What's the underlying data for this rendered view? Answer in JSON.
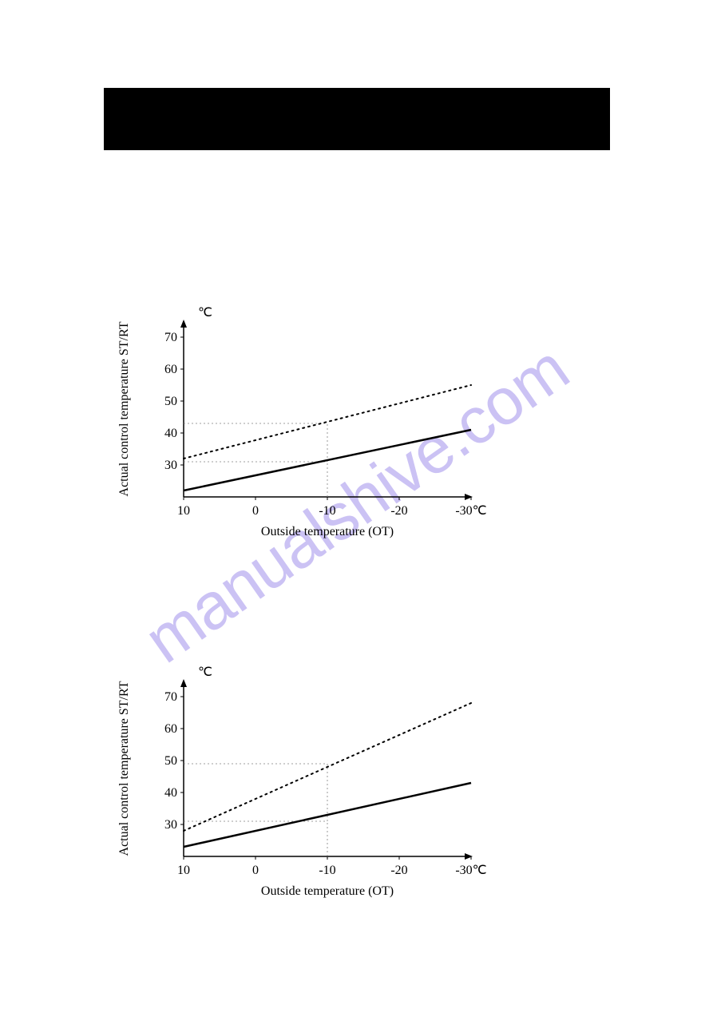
{
  "watermark": {
    "text": "manualshive.com"
  },
  "chart1": {
    "type": "line",
    "y_axis_label": "Actual control temperature ST/RT",
    "y_unit": "℃",
    "x_axis_label": "Outside temperature (OT)",
    "x_ticks": [
      "10",
      "0",
      "-10",
      "-20",
      "-30℃"
    ],
    "y_ticks": [
      "30",
      "40",
      "50",
      "60",
      "70"
    ],
    "solid_line": {
      "start": [
        10,
        22
      ],
      "end": [
        -30,
        41
      ]
    },
    "dotted_line": {
      "start": [
        10,
        32
      ],
      "end": [
        -30,
        55
      ]
    },
    "guide_solid_y": 31,
    "guide_solid_x": -10,
    "guide_dotted_y": 43,
    "guide_dotted_x": -10,
    "colors": {
      "axis": "#000000",
      "text": "#000000",
      "solid": "#000000",
      "dotted": "#000000",
      "guide": "#808080"
    },
    "font": {
      "label_size": 16,
      "tick_size": 16,
      "axis_label_size": 16
    }
  },
  "chart2": {
    "type": "line",
    "y_axis_label": "Actual control temperature ST/RT",
    "y_unit": "℃",
    "x_axis_label": "Outside temperature (OT)",
    "x_ticks": [
      "10",
      "0",
      "-10",
      "-20",
      "-30℃"
    ],
    "y_ticks": [
      "30",
      "40",
      "50",
      "60",
      "70"
    ],
    "solid_line": {
      "start": [
        10,
        23
      ],
      "end": [
        -30,
        43
      ]
    },
    "dotted_line": {
      "start": [
        10,
        28
      ],
      "end": [
        -30,
        68
      ]
    },
    "guide_solid_y": 31,
    "guide_solid_x": -10,
    "guide_dotted_y": 49,
    "guide_dotted_x": -10,
    "colors": {
      "axis": "#000000",
      "text": "#000000",
      "solid": "#000000",
      "dotted": "#000000",
      "guide": "#808080"
    },
    "font": {
      "label_size": 16,
      "tick_size": 16,
      "axis_label_size": 16
    }
  }
}
